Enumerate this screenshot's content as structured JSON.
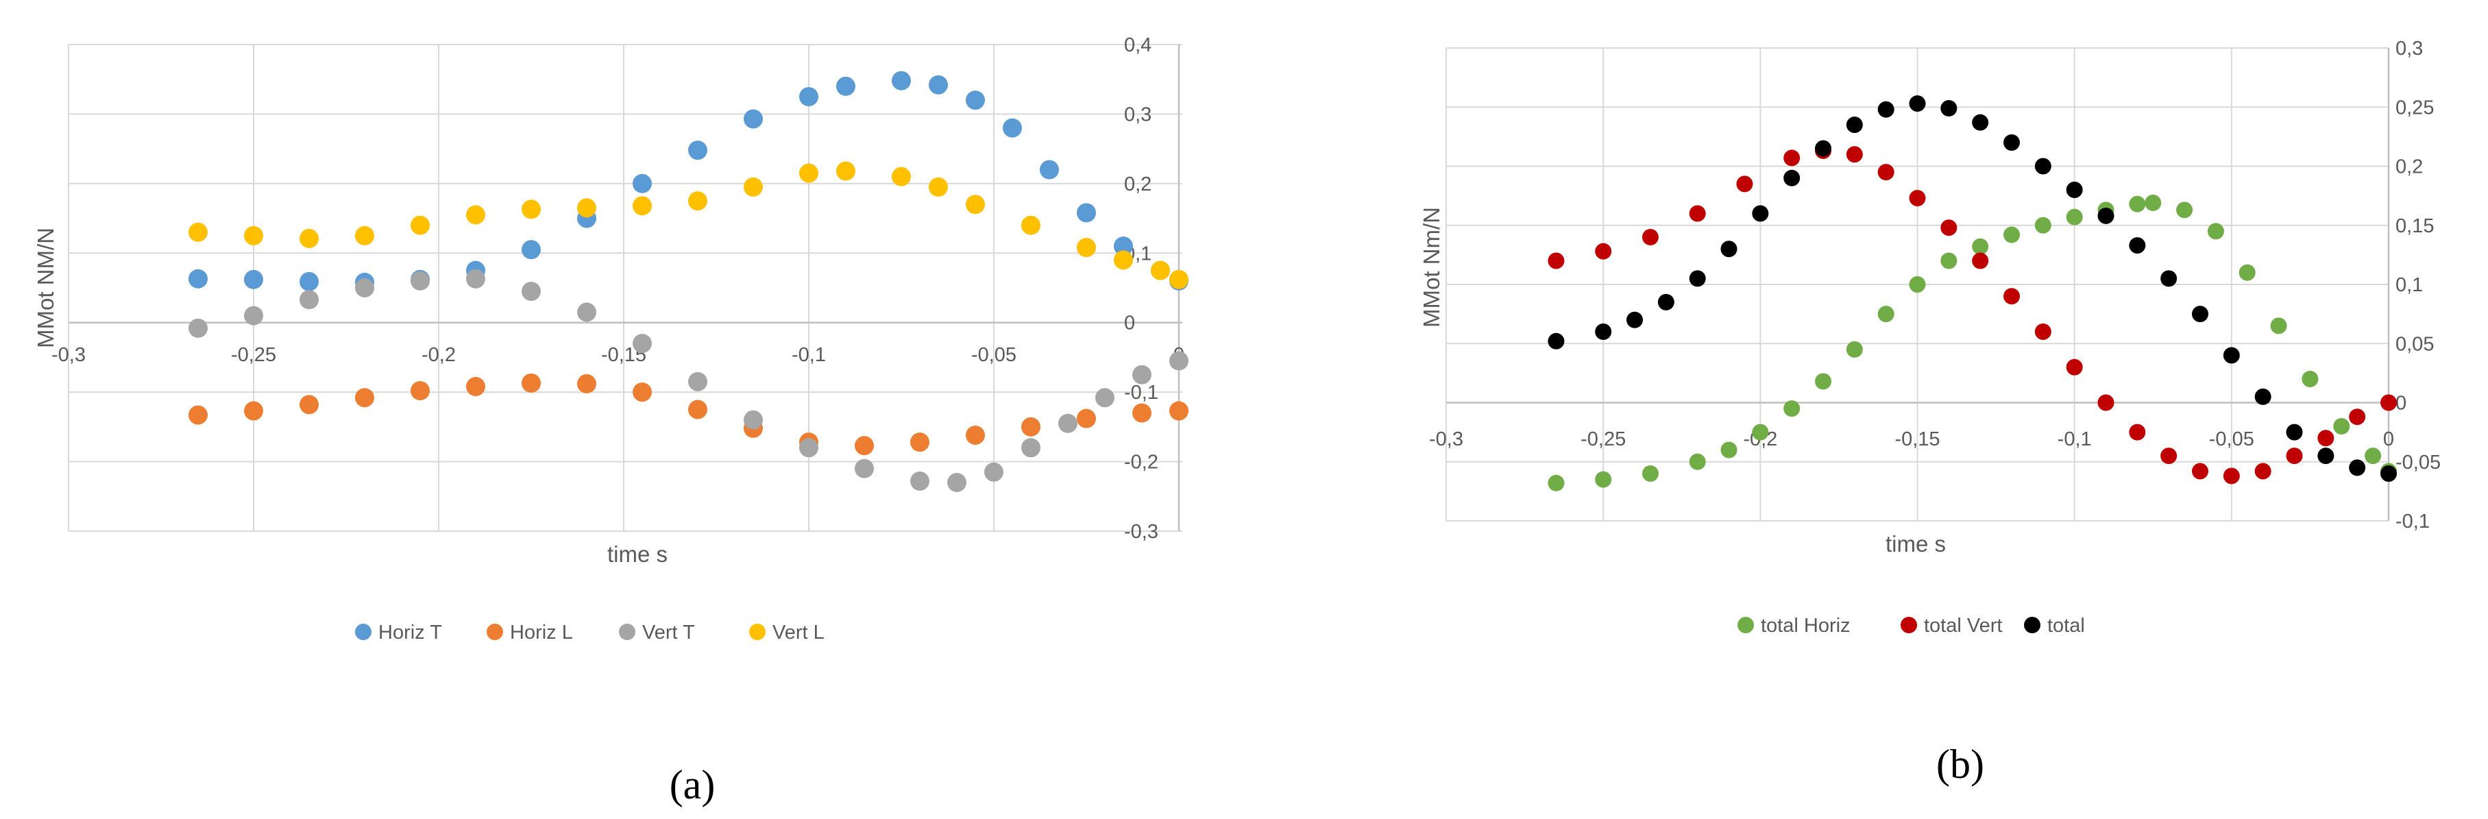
{
  "panels": [
    {
      "id": "a",
      "label": "(a)",
      "chart_data": {
        "type": "scatter",
        "xlabel": "time s",
        "ylabel": "MMot NM/N",
        "xlim": [
          -0.3,
          0
        ],
        "ylim": [
          -0.3,
          0.4
        ],
        "xticks": [
          -0.3,
          -0.25,
          -0.2,
          -0.15,
          -0.1,
          -0.05,
          0
        ],
        "xtick_labels": [
          "-0,3",
          "-0,25",
          "-0,2",
          "-0,15",
          "-0,1",
          "-0,05",
          "0"
        ],
        "yticks": [
          -0.3,
          -0.2,
          -0.1,
          0,
          0.1,
          0.2,
          0.3,
          0.4
        ],
        "ytick_labels": [
          "-0,3",
          "-0,2",
          "-0,1",
          "0",
          "0,1",
          "0,2",
          "0,3",
          "0,4"
        ],
        "grid": true,
        "legend_position": "bottom",
        "series": [
          {
            "name": "Horiz T",
            "color": "#5b9bd5",
            "points": [
              [
                -0.265,
                0.063
              ],
              [
                -0.25,
                0.062
              ],
              [
                -0.235,
                0.059
              ],
              [
                -0.22,
                0.058
              ],
              [
                -0.205,
                0.062
              ],
              [
                -0.19,
                0.075
              ],
              [
                -0.175,
                0.105
              ],
              [
                -0.16,
                0.15
              ],
              [
                -0.145,
                0.2
              ],
              [
                -0.13,
                0.248
              ],
              [
                -0.115,
                0.293
              ],
              [
                -0.1,
                0.325
              ],
              [
                -0.09,
                0.34
              ],
              [
                -0.075,
                0.348
              ],
              [
                -0.065,
                0.342
              ],
              [
                -0.055,
                0.32
              ],
              [
                -0.045,
                0.28
              ],
              [
                -0.035,
                0.22
              ],
              [
                -0.025,
                0.158
              ],
              [
                -0.015,
                0.11
              ],
              [
                -0.005,
                0.075
              ],
              [
                0,
                0.06
              ]
            ]
          },
          {
            "name": "Horiz L",
            "color": "#ed7d31",
            "points": [
              [
                -0.265,
                -0.133
              ],
              [
                -0.25,
                -0.127
              ],
              [
                -0.235,
                -0.118
              ],
              [
                -0.22,
                -0.108
              ],
              [
                -0.205,
                -0.098
              ],
              [
                -0.19,
                -0.092
              ],
              [
                -0.175,
                -0.087
              ],
              [
                -0.16,
                -0.088
              ],
              [
                -0.145,
                -0.1
              ],
              [
                -0.13,
                -0.125
              ],
              [
                -0.115,
                -0.152
              ],
              [
                -0.1,
                -0.172
              ],
              [
                -0.085,
                -0.177
              ],
              [
                -0.07,
                -0.172
              ],
              [
                -0.055,
                -0.162
              ],
              [
                -0.04,
                -0.15
              ],
              [
                -0.025,
                -0.138
              ],
              [
                -0.01,
                -0.13
              ],
              [
                0,
                -0.127
              ]
            ]
          },
          {
            "name": "Vert T",
            "color": "#a5a5a5",
            "points": [
              [
                -0.265,
                -0.008
              ],
              [
                -0.25,
                0.01
              ],
              [
                -0.235,
                0.033
              ],
              [
                -0.22,
                0.05
              ],
              [
                -0.205,
                0.06
              ],
              [
                -0.19,
                0.063
              ],
              [
                -0.175,
                0.045
              ],
              [
                -0.16,
                0.015
              ],
              [
                -0.145,
                -0.03
              ],
              [
                -0.13,
                -0.085
              ],
              [
                -0.115,
                -0.14
              ],
              [
                -0.1,
                -0.18
              ],
              [
                -0.085,
                -0.21
              ],
              [
                -0.07,
                -0.228
              ],
              [
                -0.06,
                -0.23
              ],
              [
                -0.05,
                -0.215
              ],
              [
                -0.04,
                -0.18
              ],
              [
                -0.03,
                -0.145
              ],
              [
                -0.02,
                -0.108
              ],
              [
                -0.01,
                -0.075
              ],
              [
                0,
                -0.055
              ]
            ]
          },
          {
            "name": "Vert L",
            "color": "#ffc000",
            "points": [
              [
                -0.265,
                0.13
              ],
              [
                -0.25,
                0.125
              ],
              [
                -0.235,
                0.121
              ],
              [
                -0.22,
                0.125
              ],
              [
                -0.205,
                0.14
              ],
              [
                -0.19,
                0.155
              ],
              [
                -0.175,
                0.163
              ],
              [
                -0.16,
                0.165
              ],
              [
                -0.145,
                0.168
              ],
              [
                -0.13,
                0.175
              ],
              [
                -0.115,
                0.195
              ],
              [
                -0.1,
                0.215
              ],
              [
                -0.09,
                0.218
              ],
              [
                -0.075,
                0.21
              ],
              [
                -0.065,
                0.195
              ],
              [
                -0.055,
                0.17
              ],
              [
                -0.04,
                0.14
              ],
              [
                -0.025,
                0.108
              ],
              [
                -0.015,
                0.09
              ],
              [
                -0.005,
                0.075
              ],
              [
                0,
                0.062
              ]
            ]
          }
        ]
      }
    },
    {
      "id": "b",
      "label": "(b)",
      "chart_data": {
        "type": "scatter",
        "xlabel": "time s",
        "ylabel": "MMot Nm/N",
        "xlim": [
          -0.3,
          0
        ],
        "ylim": [
          -0.1,
          0.3
        ],
        "xticks": [
          -0.3,
          -0.25,
          -0.2,
          -0.15,
          -0.1,
          -0.05,
          0
        ],
        "xtick_labels": [
          "-0,3",
          "-0,25",
          "-0,2",
          "-0,15",
          "-0,1",
          "-0,05",
          "0"
        ],
        "yticks": [
          -0.1,
          -0.05,
          0,
          0.05,
          0.1,
          0.15,
          0.2,
          0.25,
          0.3
        ],
        "ytick_labels": [
          "-0,1",
          "-0,05",
          "0",
          "0,05",
          "0,1",
          "0,15",
          "0,2",
          "0,25",
          "0,3"
        ],
        "grid": true,
        "legend_position": "bottom",
        "series": [
          {
            "name": "total Horiz",
            "color": "#70ad47",
            "points": [
              [
                -0.265,
                -0.068
              ],
              [
                -0.25,
                -0.065
              ],
              [
                -0.235,
                -0.06
              ],
              [
                -0.22,
                -0.05
              ],
              [
                -0.21,
                -0.04
              ],
              [
                -0.2,
                -0.025
              ],
              [
                -0.19,
                -0.005
              ],
              [
                -0.18,
                0.018
              ],
              [
                -0.17,
                0.045
              ],
              [
                -0.16,
                0.075
              ],
              [
                -0.15,
                0.1
              ],
              [
                -0.14,
                0.12
              ],
              [
                -0.13,
                0.132
              ],
              [
                -0.12,
                0.142
              ],
              [
                -0.11,
                0.15
              ],
              [
                -0.1,
                0.157
              ],
              [
                -0.09,
                0.163
              ],
              [
                -0.08,
                0.168
              ],
              [
                -0.075,
                0.169
              ],
              [
                -0.065,
                0.163
              ],
              [
                -0.055,
                0.145
              ],
              [
                -0.045,
                0.11
              ],
              [
                -0.035,
                0.065
              ],
              [
                -0.025,
                0.02
              ],
              [
                -0.015,
                -0.02
              ],
              [
                -0.005,
                -0.045
              ],
              [
                0,
                -0.058
              ]
            ]
          },
          {
            "name": "total Vert",
            "color": "#c00000",
            "points": [
              [
                -0.265,
                0.12
              ],
              [
                -0.25,
                0.128
              ],
              [
                -0.235,
                0.14
              ],
              [
                -0.22,
                0.16
              ],
              [
                -0.205,
                0.185
              ],
              [
                -0.19,
                0.207
              ],
              [
                -0.18,
                0.213
              ],
              [
                -0.17,
                0.21
              ],
              [
                -0.16,
                0.195
              ],
              [
                -0.15,
                0.173
              ],
              [
                -0.14,
                0.148
              ],
              [
                -0.13,
                0.12
              ],
              [
                -0.12,
                0.09
              ],
              [
                -0.11,
                0.06
              ],
              [
                -0.1,
                0.03
              ],
              [
                -0.09,
                0.0
              ],
              [
                -0.08,
                -0.025
              ],
              [
                -0.07,
                -0.045
              ],
              [
                -0.06,
                -0.058
              ],
              [
                -0.05,
                -0.062
              ],
              [
                -0.04,
                -0.058
              ],
              [
                -0.03,
                -0.045
              ],
              [
                -0.02,
                -0.03
              ],
              [
                -0.01,
                -0.012
              ],
              [
                0,
                0
              ]
            ]
          },
          {
            "name": "total",
            "color": "#000000",
            "points": [
              [
                -0.265,
                0.052
              ],
              [
                -0.25,
                0.06
              ],
              [
                -0.24,
                0.07
              ],
              [
                -0.23,
                0.085
              ],
              [
                -0.22,
                0.105
              ],
              [
                -0.21,
                0.13
              ],
              [
                -0.2,
                0.16
              ],
              [
                -0.19,
                0.19
              ],
              [
                -0.18,
                0.215
              ],
              [
                -0.17,
                0.235
              ],
              [
                -0.16,
                0.248
              ],
              [
                -0.15,
                0.253
              ],
              [
                -0.14,
                0.249
              ],
              [
                -0.13,
                0.237
              ],
              [
                -0.12,
                0.22
              ],
              [
                -0.11,
                0.2
              ],
              [
                -0.1,
                0.18
              ],
              [
                -0.09,
                0.158
              ],
              [
                -0.08,
                0.133
              ],
              [
                -0.07,
                0.105
              ],
              [
                -0.06,
                0.075
              ],
              [
                -0.05,
                0.04
              ],
              [
                -0.04,
                0.005
              ],
              [
                -0.03,
                -0.025
              ],
              [
                -0.02,
                -0.045
              ],
              [
                -0.01,
                -0.055
              ],
              [
                0,
                -0.06
              ]
            ]
          }
        ]
      }
    }
  ]
}
